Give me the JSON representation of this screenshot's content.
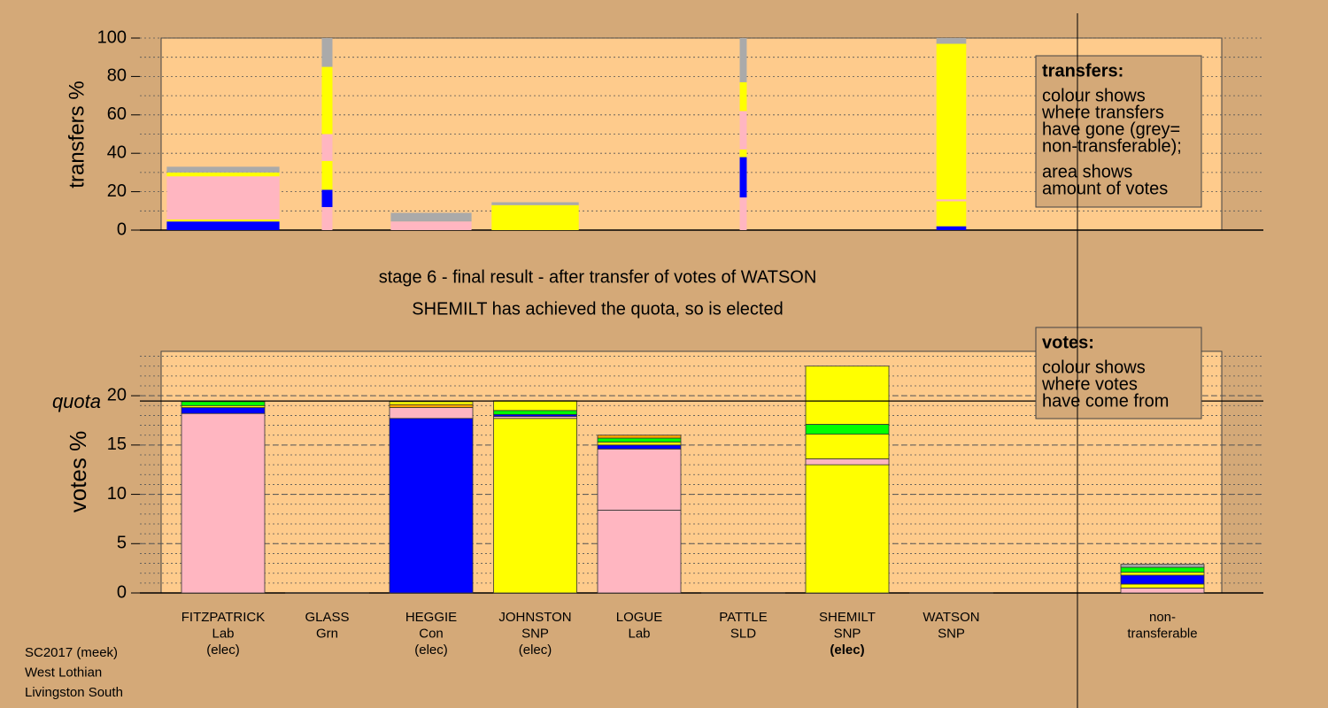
{
  "chart_data": [
    {
      "type": "stacked-bar",
      "ylabel": "transfers %",
      "ylim": [
        0,
        100
      ],
      "yticks": [
        0,
        20,
        40,
        60,
        80,
        100
      ],
      "minor_ystep": 10,
      "widths": [
        5.3,
        0.5,
        3.8,
        4.1,
        null,
        0.33,
        null,
        1.4,
        null
      ],
      "stacks": [
        [
          {
            "color": "#0000ff",
            "value": 4.5
          },
          {
            "color": "#ffff00",
            "value": 1
          },
          {
            "color": "#ffb6c1",
            "value": 22.5
          },
          {
            "color": "#ffff00",
            "value": 2
          },
          {
            "color": "#aaaaaa",
            "value": 3
          }
        ],
        [
          {
            "color": "#ffb6c1",
            "value": 12
          },
          {
            "color": "#0000ff",
            "value": 9
          },
          {
            "color": "#ffff00",
            "value": 15
          },
          {
            "color": "#ffb6c1",
            "value": 14
          },
          {
            "color": "#ffff00",
            "value": 35
          },
          {
            "color": "#aaaaaa",
            "value": 15
          }
        ],
        [
          {
            "color": "#ffb6c1",
            "value": 4.5
          },
          {
            "color": "#aaaaaa",
            "value": 4.5
          }
        ],
        [
          {
            "color": "#ffff00",
            "value": 13
          },
          {
            "color": "#aaaaaa",
            "value": 1.5
          }
        ],
        null,
        [
          {
            "color": "#ffb6c1",
            "value": 17
          },
          {
            "color": "#0000ff",
            "value": 21
          },
          {
            "color": "#ffff00",
            "value": 4
          },
          {
            "color": "#ffb6c1",
            "value": 20
          },
          {
            "color": "#ffff00",
            "value": 15
          },
          {
            "color": "#aaaaaa",
            "value": 23
          }
        ],
        null,
        [
          {
            "color": "#0000ff",
            "value": 2
          },
          {
            "color": "#ffff00",
            "value": 13
          },
          {
            "color": "#ffb6c1",
            "value": 1
          },
          {
            "color": "#ffff00",
            "value": 81
          },
          {
            "color": "#aaaaaa",
            "value": 3
          }
        ],
        null
      ],
      "legend": {
        "title": "transfers:",
        "paragraphs": [
          [
            "colour shows",
            "where transfers",
            "have gone (grey=",
            "non-transferable);"
          ],
          [
            "area shows",
            "amount of votes"
          ]
        ]
      }
    },
    {
      "type": "stacked-bar",
      "title": [
        "stage 6 - final result - after transfer of votes of WATSON",
        "SHEMILT has achieved the quota, so is elected"
      ],
      "ylabel": "votes %",
      "ylim": [
        0,
        24.5
      ],
      "yticks": [
        0,
        5,
        10,
        15,
        20
      ],
      "minor_ystep": 1,
      "quota": {
        "label": "quota",
        "value": 19.46
      },
      "categories": [
        {
          "lines": [
            "FITZPATRICK",
            "Lab",
            "(elec)"
          ]
        },
        {
          "lines": [
            "GLASS",
            "Grn"
          ]
        },
        {
          "lines": [
            "HEGGIE",
            "Con",
            "(elec)"
          ]
        },
        {
          "lines": [
            "JOHNSTON",
            "SNP",
            "(elec)"
          ]
        },
        {
          "lines": [
            "LOGUE",
            "Lab"
          ]
        },
        {
          "lines": [
            "PATTLE",
            "SLD"
          ]
        },
        {
          "lines": [
            "SHEMILT",
            "SNP",
            "(elec)"
          ],
          "bold": true
        },
        {
          "lines": [
            "WATSON",
            "SNP"
          ]
        },
        {
          "lines": [
            "non-",
            "transferable"
          ]
        }
      ],
      "stacks": [
        [
          {
            "color": "#ffb6c1",
            "value": 18.2
          },
          {
            "color": "#0000ff",
            "value": 0.6
          },
          {
            "color": "#ffff00",
            "value": 0.2
          },
          {
            "color": "#00ff00",
            "value": 0.4
          }
        ],
        [
          {
            "color": "#00ff00",
            "value": 0
          }
        ],
        [
          {
            "color": "#0000ff",
            "value": 17.7
          },
          {
            "color": "#ffb6c1",
            "value": 1.1
          },
          {
            "color": "#ffa500",
            "value": 0.3
          },
          {
            "color": "#ffff00",
            "value": 0.3
          }
        ],
        [
          {
            "color": "#ffff00",
            "value": 17.7
          },
          {
            "color": "#ffb6c1",
            "value": 0.2
          },
          {
            "color": "#0000ff",
            "value": 0.2
          },
          {
            "color": "#00ff00",
            "value": 0.4
          },
          {
            "color": "#ffff00",
            "value": 1.0
          }
        ],
        [
          {
            "color": "#ffb6c1",
            "value": 8.4
          },
          {
            "color": "#ffb6c1",
            "value": 6.2
          },
          {
            "color": "#0000ff",
            "value": 0.4
          },
          {
            "color": "#ffff00",
            "value": 0.3
          },
          {
            "color": "#00ff00",
            "value": 0.4
          },
          {
            "color": "#ffa500",
            "value": 0.3
          }
        ],
        [
          {
            "color": "#ffff00",
            "value": 0
          }
        ],
        [
          {
            "color": "#ffff00",
            "value": 13.0
          },
          {
            "color": "#ffb6c1",
            "value": 0.6
          },
          {
            "color": "#ffff00",
            "value": 2.5
          },
          {
            "color": "#00ff00",
            "value": 1.0
          },
          {
            "color": "#ffff00",
            "value": 5.9
          }
        ],
        [
          {
            "color": "#ffff00",
            "value": 0
          }
        ],
        [
          {
            "color": "#ffb6c1",
            "value": 0.5
          },
          {
            "color": "#ffff00",
            "value": 0.4
          },
          {
            "color": "#0000ff",
            "value": 0.9
          },
          {
            "color": "#ffff00",
            "value": 0.3
          },
          {
            "color": "#00ff00",
            "value": 0.5
          },
          {
            "color": "#aaaaaa",
            "value": 0.3
          }
        ]
      ],
      "legend": {
        "title": "votes:",
        "paragraphs": [
          [
            "colour shows",
            "where votes",
            "have come from"
          ]
        ]
      },
      "footer": [
        "SC2017 (meek)",
        "West Lothian",
        "Livingston South"
      ]
    }
  ]
}
